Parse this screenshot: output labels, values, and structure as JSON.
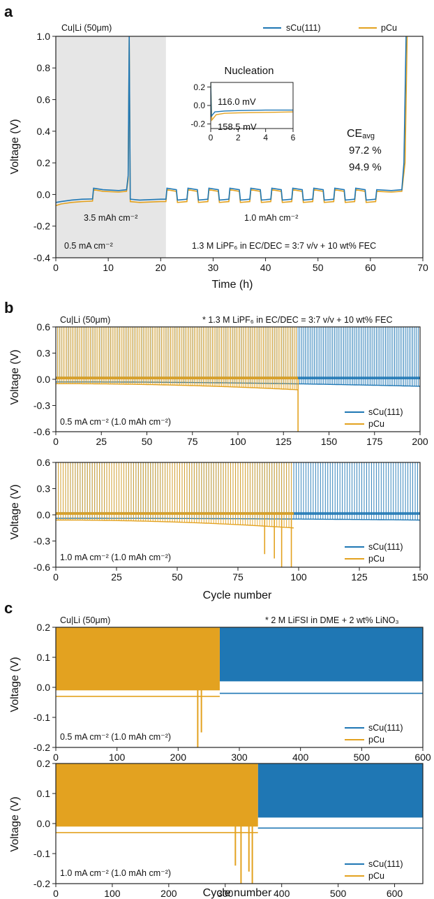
{
  "colors": {
    "sCu": "#1f77b4",
    "pCu": "#e3a220",
    "shade": "#e6e6e6"
  },
  "panel_letters": [
    "a",
    "b",
    "c"
  ],
  "legend": {
    "s1": "sCu(111)",
    "s2": "pCu"
  },
  "chart_data": [
    {
      "type": "line",
      "title": "",
      "xlabel": "Time (h)",
      "ylabel": "Voltage (V)",
      "xlim": [
        0,
        70
      ],
      "ylim": [
        -0.4,
        1.0
      ],
      "xticks": [
        0,
        10,
        20,
        30,
        40,
        50,
        60,
        70
      ],
      "yticks": [
        -0.4,
        -0.2,
        0.0,
        0.2,
        0.4,
        0.6,
        0.8,
        1.0
      ],
      "shaded_region_x": [
        0,
        21
      ],
      "annotations": {
        "cell": "Cu|Li (50μm)",
        "cap1": "3.5 mAh cm⁻²",
        "cap2": "1.0 mAh cm⁻²",
        "current": "0.5 mA cm⁻²",
        "electrolyte": "1.3 M LiPF₆ in EC/DEC = 3:7 v/v + 10 wt% FEC",
        "ce_title": "CE",
        "ce_sub": "avg",
        "ce_sCu": "97.2 %",
        "ce_pCu": "94.9 %"
      },
      "series": [
        {
          "name": "sCu(111)",
          "points": [
            [
              0,
              -0.05
            ],
            [
              1,
              -0.045
            ],
            [
              3,
              -0.035
            ],
            [
              5,
              -0.03
            ],
            [
              7,
              -0.028
            ],
            [
              7.2,
              0.04
            ],
            [
              9,
              0.03
            ],
            [
              12,
              0.025
            ],
            [
              13.5,
              0.03
            ],
            [
              13.8,
              0.12
            ],
            [
              14,
              1.0
            ],
            [
              14.2,
              -0.03
            ],
            [
              16,
              -0.035
            ],
            [
              20,
              -0.03
            ],
            [
              21,
              -0.03
            ],
            [
              21.2,
              0.04
            ],
            [
              23,
              0.03
            ],
            [
              23.2,
              -0.035
            ],
            [
              25,
              -0.03
            ],
            [
              25.2,
              0.04
            ],
            [
              27,
              0.03
            ],
            [
              27.2,
              -0.035
            ],
            [
              29,
              -0.03
            ],
            [
              29.2,
              0.04
            ],
            [
              31,
              0.03
            ],
            [
              31.2,
              -0.035
            ],
            [
              33,
              -0.03
            ],
            [
              33.2,
              0.04
            ],
            [
              35,
              0.03
            ],
            [
              35.2,
              -0.035
            ],
            [
              37,
              -0.03
            ],
            [
              37.2,
              0.04
            ],
            [
              39,
              0.03
            ],
            [
              39.2,
              -0.035
            ],
            [
              41,
              -0.03
            ],
            [
              41.2,
              0.04
            ],
            [
              43,
              0.03
            ],
            [
              43.2,
              -0.035
            ],
            [
              45,
              -0.03
            ],
            [
              45.2,
              0.04
            ],
            [
              47,
              0.03
            ],
            [
              47.2,
              -0.035
            ],
            [
              49,
              -0.03
            ],
            [
              49.2,
              0.04
            ],
            [
              51,
              0.03
            ],
            [
              51.2,
              -0.035
            ],
            [
              53,
              -0.03
            ],
            [
              53.2,
              0.04
            ],
            [
              55,
              0.03
            ],
            [
              55.2,
              -0.035
            ],
            [
              57,
              -0.03
            ],
            [
              57.2,
              0.04
            ],
            [
              59,
              0.03
            ],
            [
              59.2,
              -0.035
            ],
            [
              61,
              -0.03
            ],
            [
              61.2,
              0.03
            ],
            [
              64,
              0.025
            ],
            [
              66,
              0.03
            ],
            [
              66.4,
              0.2
            ],
            [
              66.8,
              1.0
            ]
          ]
        },
        {
          "name": "pCu",
          "points": [
            [
              0,
              -0.07
            ],
            [
              1,
              -0.06
            ],
            [
              3,
              -0.05
            ],
            [
              5,
              -0.045
            ],
            [
              7,
              -0.042
            ],
            [
              7.2,
              0.03
            ],
            [
              9,
              0.02
            ],
            [
              12,
              0.015
            ],
            [
              13.5,
              0.02
            ],
            [
              13.8,
              0.1
            ],
            [
              14,
              0.98
            ],
            [
              14.2,
              -0.045
            ],
            [
              16,
              -0.05
            ],
            [
              20,
              -0.045
            ],
            [
              21,
              -0.045
            ],
            [
              21.2,
              0.03
            ],
            [
              23,
              0.02
            ],
            [
              23.2,
              -0.05
            ],
            [
              25,
              -0.045
            ],
            [
              25.2,
              0.03
            ],
            [
              27,
              0.02
            ],
            [
              27.2,
              -0.05
            ],
            [
              29,
              -0.045
            ],
            [
              29.2,
              0.03
            ],
            [
              31,
              0.02
            ],
            [
              31.2,
              -0.05
            ],
            [
              33,
              -0.045
            ],
            [
              33.2,
              0.03
            ],
            [
              35,
              0.02
            ],
            [
              35.2,
              -0.05
            ],
            [
              37,
              -0.045
            ],
            [
              37.2,
              0.03
            ],
            [
              39,
              0.02
            ],
            [
              39.2,
              -0.05
            ],
            [
              41,
              -0.045
            ],
            [
              41.2,
              0.03
            ],
            [
              43,
              0.02
            ],
            [
              43.2,
              -0.05
            ],
            [
              45,
              -0.045
            ],
            [
              45.2,
              0.03
            ],
            [
              47,
              0.02
            ],
            [
              47.2,
              -0.05
            ],
            [
              49,
              -0.045
            ],
            [
              49.2,
              0.03
            ],
            [
              51,
              0.02
            ],
            [
              51.2,
              -0.05
            ],
            [
              53,
              -0.045
            ],
            [
              53.2,
              0.03
            ],
            [
              55,
              0.02
            ],
            [
              55.2,
              -0.05
            ],
            [
              57,
              -0.045
            ],
            [
              57.2,
              0.03
            ],
            [
              59,
              0.02
            ],
            [
              59.2,
              -0.05
            ],
            [
              61,
              -0.045
            ],
            [
              61.2,
              0.02
            ],
            [
              64,
              0.015
            ],
            [
              66,
              0.02
            ],
            [
              66.6,
              0.2
            ],
            [
              67,
              1.0
            ]
          ]
        }
      ],
      "inset": {
        "title": "Nucleation",
        "xlim": [
          0,
          6
        ],
        "ylim": [
          -0.25,
          0.25
        ],
        "xticks": [
          0,
          2,
          4,
          6
        ],
        "yticks": [
          -0.2,
          0.0,
          0.2
        ],
        "label_sCu": "116.0 mV",
        "label_pCu": "158.5 mV",
        "series": [
          {
            "name": "sCu(111)",
            "points": [
              [
                0,
                0.25
              ],
              [
                0.05,
                -0.116
              ],
              [
                0.3,
                -0.07
              ],
              [
                1,
                -0.06
              ],
              [
                2,
                -0.055
              ],
              [
                4,
                -0.05
              ],
              [
                6,
                -0.05
              ]
            ]
          },
          {
            "name": "pCu",
            "points": [
              [
                0,
                0.25
              ],
              [
                0.08,
                -0.1585
              ],
              [
                0.4,
                -0.1
              ],
              [
                1,
                -0.085
              ],
              [
                2,
                -0.08
              ],
              [
                4,
                -0.075
              ],
              [
                6,
                -0.07
              ]
            ]
          }
        ]
      }
    },
    {
      "type": "line",
      "title": "",
      "xlabel": "",
      "ylabel": "Voltage (V)",
      "xlim": [
        0,
        200
      ],
      "ylim": [
        -0.6,
        0.6
      ],
      "xticks": [
        0,
        25,
        50,
        75,
        100,
        125,
        150,
        175,
        200
      ],
      "yticks": [
        -0.6,
        -0.3,
        0.0,
        0.3,
        0.6
      ],
      "annotations": {
        "cell": "Cu|Li (50μm)",
        "electrolyte": "* 1.3 M LiPF₆ in EC/DEC = 3:7 v/v + 10 wt% FEC",
        "current": "0.5 mA cm⁻² (1.0 mAh cm⁻²)"
      },
      "series": [
        {
          "name": "sCu(111)",
          "cycles_end": 200,
          "strip_top": 0.6,
          "plating_start": -0.03,
          "plating_end": -0.08
        },
        {
          "name": "pCu",
          "cycles_end": 133,
          "strip_top": 0.6,
          "plating_start": -0.05,
          "plating_end": -0.12,
          "short_dips": [
            [
              133,
              -0.6
            ]
          ]
        }
      ]
    },
    {
      "type": "line",
      "title": "",
      "xlabel": "Cycle number",
      "ylabel": "Voltage (V)",
      "xlim": [
        0,
        150
      ],
      "ylim": [
        -0.6,
        0.6
      ],
      "xticks": [
        0,
        25,
        50,
        75,
        100,
        125,
        150
      ],
      "yticks": [
        -0.6,
        -0.3,
        0.0,
        0.3,
        0.6
      ],
      "annotations": {
        "current": "1.0 mA cm⁻² (1.0 mAh cm⁻²)"
      },
      "series": [
        {
          "name": "sCu(111)",
          "cycles_end": 150,
          "strip_top": 0.6,
          "plating_start": -0.04,
          "plating_end": -0.06
        },
        {
          "name": "pCu",
          "cycles_end": 98,
          "strip_top": 0.6,
          "plating_start": -0.06,
          "plating_end": -0.15,
          "short_dips": [
            [
              86,
              -0.45
            ],
            [
              90,
              -0.5
            ],
            [
              93,
              -0.6
            ],
            [
              97,
              -0.6
            ]
          ]
        }
      ]
    },
    {
      "type": "line",
      "title": "",
      "xlabel": "",
      "ylabel": "Voltage (V)",
      "xlim": [
        0,
        600
      ],
      "ylim": [
        -0.2,
        0.2
      ],
      "xticks": [
        0,
        100,
        200,
        300,
        400,
        500,
        600
      ],
      "yticks": [
        -0.2,
        -0.1,
        0.0,
        0.1,
        0.2
      ],
      "annotations": {
        "cell": "Cu|Li (50μm)",
        "electrolyte": "* 2 M LiFSI in DME + 2 wt% LiNO₃",
        "current": "0.5 mA cm⁻² (1.0 mAh cm⁻²)"
      },
      "series": [
        {
          "name": "sCu(111)",
          "cycles_end": 600,
          "plating": -0.02
        },
        {
          "name": "pCu",
          "cycles_end": 268,
          "plating": -0.03,
          "short_dips": [
            [
              232,
              -0.2
            ],
            [
              238,
              -0.15
            ]
          ]
        }
      ]
    },
    {
      "type": "line",
      "title": "",
      "xlabel": "Cycle number",
      "ylabel": "Voltage (V)",
      "xlim": [
        0,
        650
      ],
      "ylim": [
        -0.2,
        0.2
      ],
      "xticks": [
        0,
        100,
        200,
        300,
        400,
        500,
        600
      ],
      "yticks": [
        -0.2,
        -0.1,
        0.0,
        0.1,
        0.2
      ],
      "annotations": {
        "current": "1.0 mA cm⁻² (1.0 mAh cm⁻²)"
      },
      "series": [
        {
          "name": "sCu(111)",
          "cycles_end": 650,
          "plating": -0.015
        },
        {
          "name": "pCu",
          "cycles_end": 358,
          "plating": -0.03,
          "short_dips": [
            [
              318,
              -0.14
            ],
            [
              328,
              -0.2
            ],
            [
              342,
              -0.16
            ],
            [
              348,
              -0.2
            ]
          ]
        }
      ]
    }
  ]
}
